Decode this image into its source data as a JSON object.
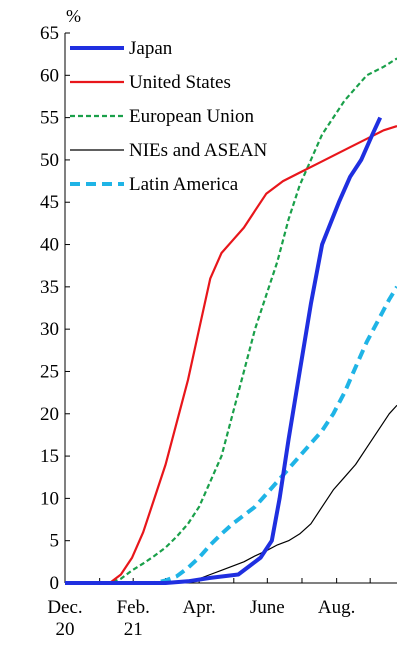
{
  "chart_data": {
    "type": "line",
    "title": "",
    "ylabel": "%",
    "xlabel": "",
    "ylim": [
      0,
      65
    ],
    "xlim": [
      0,
      297
    ],
    "y_ticks": [
      0,
      5,
      10,
      15,
      20,
      25,
      30,
      35,
      40,
      45,
      50,
      55,
      60,
      65
    ],
    "x_ticks": [
      {
        "x": 0,
        "label": [
          "Dec.",
          "20"
        ]
      },
      {
        "x": 61,
        "label": [
          "Feb.",
          "21"
        ]
      },
      {
        "x": 120,
        "label": [
          "Apr.",
          ""
        ]
      },
      {
        "x": 181,
        "label": [
          "June",
          ""
        ]
      },
      {
        "x": 243,
        "label": [
          "Aug.",
          ""
        ]
      }
    ],
    "x_minor_ticks": [
      0,
      31,
      61,
      90,
      120,
      151,
      181,
      212,
      243,
      273
    ],
    "grid": false,
    "legend_position": "top-left",
    "series": [
      {
        "name": "Japan",
        "color": "#1f2fe0",
        "style": "solid-thick",
        "points": [
          [
            0,
            0
          ],
          [
            90,
            0
          ],
          [
            110,
            0.2
          ],
          [
            130,
            0.6
          ],
          [
            155,
            1.0
          ],
          [
            165,
            2.0
          ],
          [
            175,
            3.0
          ],
          [
            185,
            5.0
          ],
          [
            192,
            10.0
          ],
          [
            200,
            17.0
          ],
          [
            210,
            25.0
          ],
          [
            220,
            33.0
          ],
          [
            230,
            40.0
          ],
          [
            245,
            45.0
          ],
          [
            255,
            48.0
          ],
          [
            265,
            50.0
          ],
          [
            275,
            53.0
          ],
          [
            282,
            55.0
          ]
        ]
      },
      {
        "name": "United States",
        "color": "#e8161b",
        "style": "solid",
        "points": [
          [
            0,
            0
          ],
          [
            40,
            0
          ],
          [
            50,
            1
          ],
          [
            60,
            3
          ],
          [
            70,
            6
          ],
          [
            80,
            10
          ],
          [
            90,
            14
          ],
          [
            100,
            19
          ],
          [
            110,
            24
          ],
          [
            120,
            30
          ],
          [
            130,
            36
          ],
          [
            140,
            39
          ],
          [
            150,
            40.5
          ],
          [
            160,
            42
          ],
          [
            170,
            44
          ],
          [
            180,
            46
          ],
          [
            195,
            47.5
          ],
          [
            210,
            48.5
          ],
          [
            225,
            49.5
          ],
          [
            240,
            50.5
          ],
          [
            255,
            51.5
          ],
          [
            270,
            52.5
          ],
          [
            285,
            53.5
          ],
          [
            297,
            54
          ]
        ]
      },
      {
        "name": "European Union",
        "color": "#1aa04a",
        "style": "dashed",
        "points": [
          [
            0,
            0
          ],
          [
            40,
            0
          ],
          [
            50,
            0.5
          ],
          [
            60,
            1.5
          ],
          [
            70,
            2.3
          ],
          [
            80,
            3.2
          ],
          [
            90,
            4.2
          ],
          [
            100,
            5.5
          ],
          [
            110,
            7.0
          ],
          [
            120,
            9.0
          ],
          [
            130,
            12.0
          ],
          [
            140,
            15.0
          ],
          [
            150,
            20.0
          ],
          [
            160,
            25.0
          ],
          [
            170,
            30.0
          ],
          [
            180,
            34.0
          ],
          [
            190,
            38.0
          ],
          [
            200,
            43.0
          ],
          [
            210,
            47.0
          ],
          [
            220,
            50.0
          ],
          [
            230,
            53.0
          ],
          [
            240,
            55.0
          ],
          [
            250,
            57.0
          ],
          [
            260,
            58.5
          ],
          [
            270,
            60.0
          ],
          [
            285,
            61.0
          ],
          [
            297,
            62.0
          ]
        ]
      },
      {
        "name": "NIEs and ASEAN",
        "color": "#000000",
        "style": "solid-thin",
        "points": [
          [
            0,
            0
          ],
          [
            90,
            0
          ],
          [
            110,
            0.2
          ],
          [
            120,
            0.5
          ],
          [
            130,
            1.0
          ],
          [
            140,
            1.5
          ],
          [
            150,
            2.0
          ],
          [
            160,
            2.5
          ],
          [
            170,
            3.2
          ],
          [
            180,
            3.8
          ],
          [
            190,
            4.5
          ],
          [
            200,
            5.0
          ],
          [
            210,
            5.8
          ],
          [
            220,
            7.0
          ],
          [
            230,
            9.0
          ],
          [
            240,
            11.0
          ],
          [
            250,
            12.5
          ],
          [
            260,
            14.0
          ],
          [
            270,
            16.0
          ],
          [
            280,
            18.0
          ],
          [
            290,
            20.0
          ],
          [
            297,
            21.0
          ]
        ]
      },
      {
        "name": "Latin America",
        "color": "#1fb4e6",
        "style": "dashed-thick",
        "points": [
          [
            0,
            0
          ],
          [
            80,
            0
          ],
          [
            90,
            0.3
          ],
          [
            100,
            0.8
          ],
          [
            110,
            1.8
          ],
          [
            120,
            3.0
          ],
          [
            130,
            4.5
          ],
          [
            140,
            5.8
          ],
          [
            150,
            7.0
          ],
          [
            160,
            8.0
          ],
          [
            170,
            9.0
          ],
          [
            180,
            10.5
          ],
          [
            190,
            12.0
          ],
          [
            200,
            13.5
          ],
          [
            210,
            15.0
          ],
          [
            220,
            16.5
          ],
          [
            230,
            18.0
          ],
          [
            240,
            20.0
          ],
          [
            250,
            22.5
          ],
          [
            260,
            25.5
          ],
          [
            270,
            28.5
          ],
          [
            280,
            31.0
          ],
          [
            290,
            33.5
          ],
          [
            297,
            35.0
          ]
        ]
      }
    ]
  }
}
